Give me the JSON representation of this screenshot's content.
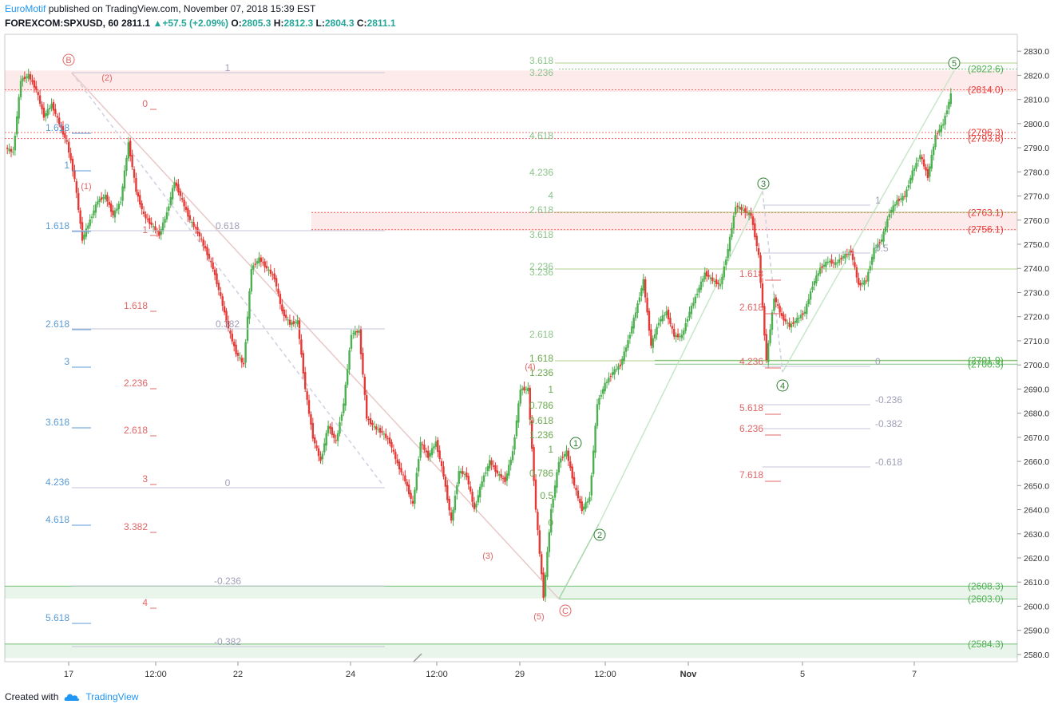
{
  "header": {
    "author": "EuroMotif",
    "published_text": " published on TradingView.com, November 07, 2018 15:39 EST",
    "symbol": "FOREXCOM:SPXUSD, 60",
    "last": "2811.1",
    "change": "+57.5 (+2.09%)",
    "o_label": "O:",
    "o": "2805.3",
    "h_label": "H:",
    "h": "2812.3",
    "l_label": "L:",
    "l": "2804.3",
    "c_label": "C:",
    "c": "2811.1"
  },
  "footer": {
    "created_with": "Created with",
    "brand": "TradingView"
  },
  "colors": {
    "up": "#26a69a",
    "down": "#ef5350",
    "candle_up": "#4caf50",
    "candle_down": "#e53935",
    "blue_fib": "#5b9bd5",
    "red_fib": "#e06666",
    "green_fib": "#6aa84f"
  },
  "chart_data": {
    "type": "candlestick",
    "ylim": [
      2577,
      2837
    ],
    "y_ticks": [
      "2830.0",
      "2820.0",
      "2810.0",
      "2800.0",
      "2790.0",
      "2780.0",
      "2770.0",
      "2760.0",
      "2750.0",
      "2740.0",
      "2730.0",
      "2720.0",
      "2710.0",
      "2700.0",
      "2690.0",
      "2680.0",
      "2670.0",
      "2660.0",
      "2650.0",
      "2640.0",
      "2630.0",
      "2620.0",
      "2610.0",
      "2600.0",
      "2590.0",
      "2580.0"
    ],
    "x_ticks": [
      "17",
      "12:00",
      "22",
      "24",
      "12:00",
      "29",
      "12:00",
      "Nov",
      "5",
      "7"
    ],
    "price_series": [
      2790,
      2788,
      2818,
      2820,
      2814,
      2803,
      2808,
      2800,
      2792,
      2777,
      2752,
      2760,
      2768,
      2770,
      2762,
      2768,
      2792,
      2772,
      2762,
      2758,
      2754,
      2763,
      2776,
      2768,
      2760,
      2755,
      2748,
      2740,
      2728,
      2715,
      2705,
      2700,
      2740,
      2744,
      2740,
      2736,
      2722,
      2717,
      2718,
      2690,
      2670,
      2660,
      2675,
      2668,
      2684,
      2713,
      2714,
      2678,
      2674,
      2672,
      2668,
      2659,
      2652,
      2642,
      2668,
      2662,
      2668,
      2654,
      2635,
      2656,
      2654,
      2640,
      2652,
      2660,
      2655,
      2652,
      2664,
      2690,
      2690,
      2640,
      2604,
      2640,
      2660,
      2664,
      2650,
      2640,
      2645,
      2684,
      2692,
      2697,
      2700,
      2710,
      2722,
      2735,
      2708,
      2718,
      2722,
      2712,
      2712,
      2722,
      2730,
      2738,
      2735,
      2733,
      2748,
      2766,
      2764,
      2762,
      2745,
      2702,
      2728,
      2720,
      2716,
      2719,
      2722,
      2733,
      2740,
      2743,
      2742,
      2745,
      2747,
      2733,
      2735,
      2748,
      2752,
      2763,
      2768,
      2770,
      2780,
      2787,
      2778,
      2795,
      2800,
      2812
    ],
    "resistance_labels": [
      "(2822.6)",
      "(2814.0)",
      "(2796.3)",
      "(2793.8)",
      "(2763.1)",
      "(2756.1)",
      "(2701.9)",
      "(2700.3)",
      "(2608.3)",
      "(2603.0)",
      "(2584.3)"
    ],
    "wave_labels": [
      "B",
      "(2)",
      "(1)",
      "(3)",
      "(4)",
      "(5)",
      "C",
      "1",
      "2",
      "3",
      "4",
      "5"
    ],
    "fib_blue_left": [
      "1.618",
      "1",
      "1.618",
      "2.618",
      "3",
      "3.618",
      "4.236",
      "4.618",
      "5.618"
    ],
    "fib_red_left": [
      "0",
      "1",
      "1.618",
      "2.236",
      "2.618",
      "3",
      "3.382",
      "4"
    ],
    "fib_gray_left": [
      "1",
      "0.618",
      "0.382",
      "0",
      "-0.236",
      "-0.382"
    ],
    "fib_green": [
      "3.618",
      "3.236",
      "4.618",
      "4.236",
      "4",
      "2.618",
      "3.618",
      "2.236",
      "3.236",
      "2.618",
      "1.618",
      "1.236",
      "1",
      "0.786",
      "0.618",
      "1.236",
      "1",
      "0.786",
      "0.5",
      "0"
    ],
    "fib_red_right": [
      "1.618",
      "2.618",
      "4.236",
      "5.618",
      "6.236",
      "7.618"
    ],
    "fib_gray_right": [
      "1",
      "0.5",
      "0",
      "-0.236",
      "-0.382",
      "-0.618"
    ]
  }
}
